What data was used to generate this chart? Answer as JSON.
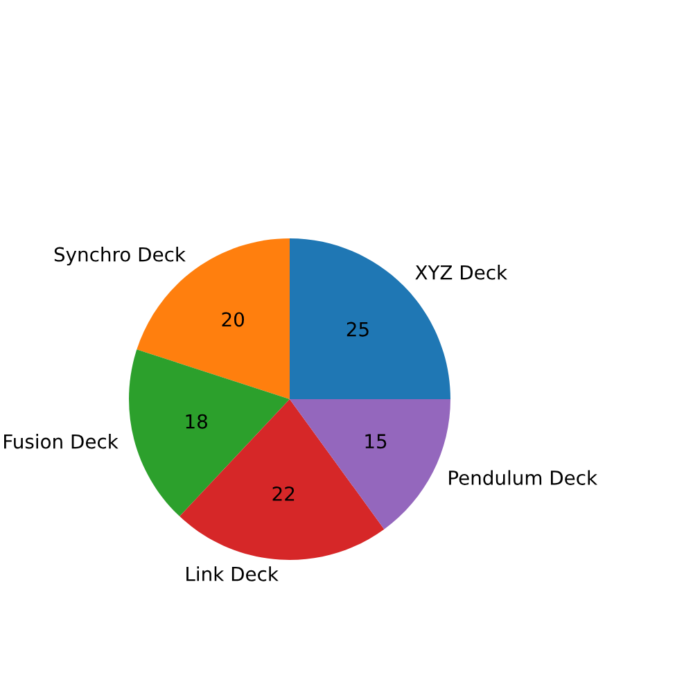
{
  "chart_data": {
    "type": "pie",
    "categories": [
      "XYZ Deck",
      "Synchro Deck",
      "Fusion Deck",
      "Link Deck",
      "Pendulum Deck"
    ],
    "values": [
      25,
      20,
      18,
      22,
      15
    ],
    "colors": [
      "#1f77b4",
      "#ff7f0e",
      "#2ca02c",
      "#d62728",
      "#9467bd"
    ],
    "data_labels": true
  }
}
